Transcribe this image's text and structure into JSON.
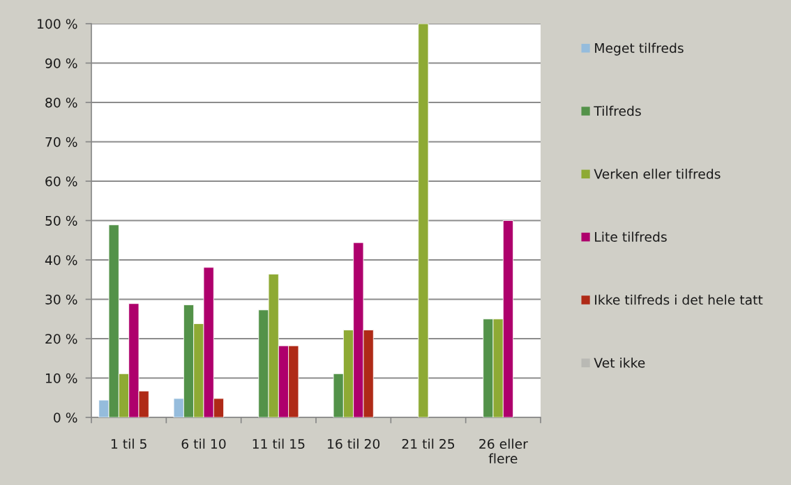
{
  "chart_data": {
    "type": "bar",
    "categories": [
      "1 til 5",
      "6 til 10",
      "11 til 15",
      "16 til 20",
      "21 til 25",
      "26 eller\nflere"
    ],
    "series": [
      {
        "name": "Meget tilfreds",
        "color": "#95bcdc",
        "values": [
          4.4,
          4.8,
          null,
          null,
          null,
          null
        ]
      },
      {
        "name": "Tilfreds",
        "color": "#539249",
        "values": [
          48.9,
          28.6,
          27.3,
          11.1,
          null,
          25
        ]
      },
      {
        "name": "Verken eller tilfreds",
        "color": "#8eaa34",
        "values": [
          11.1,
          23.8,
          36.4,
          22.2,
          100,
          25
        ]
      },
      {
        "name": "Lite tilfreds",
        "color": "#ae006c",
        "values": [
          28.9,
          38.1,
          18.2,
          44.4,
          null,
          50
        ]
      },
      {
        "name": "Ikke tilfreds i det hele tatt",
        "color": "#af2a17",
        "values": [
          6.7,
          4.8,
          18.2,
          22.2,
          null,
          null
        ]
      },
      {
        "name": "Vet ikke",
        "color": "#b9b9b4",
        "values": [
          null,
          null,
          null,
          null,
          null,
          null
        ]
      }
    ],
    "ylim": [
      0,
      100
    ],
    "yticks": [
      {
        "value": 0,
        "label": "0 %"
      },
      {
        "value": 10,
        "label": "10 %"
      },
      {
        "value": 20,
        "label": "20 %"
      },
      {
        "value": 30,
        "label": "30 %"
      },
      {
        "value": 40,
        "label": "40 %"
      },
      {
        "value": 50,
        "label": "50 %"
      },
      {
        "value": 60,
        "label": "60 %"
      },
      {
        "value": 70,
        "label": "70 %"
      },
      {
        "value": 80,
        "label": "80 %"
      },
      {
        "value": 90,
        "label": "90 %"
      },
      {
        "value": 100,
        "label": "100 %"
      }
    ],
    "grid": "y",
    "legend": "right"
  }
}
